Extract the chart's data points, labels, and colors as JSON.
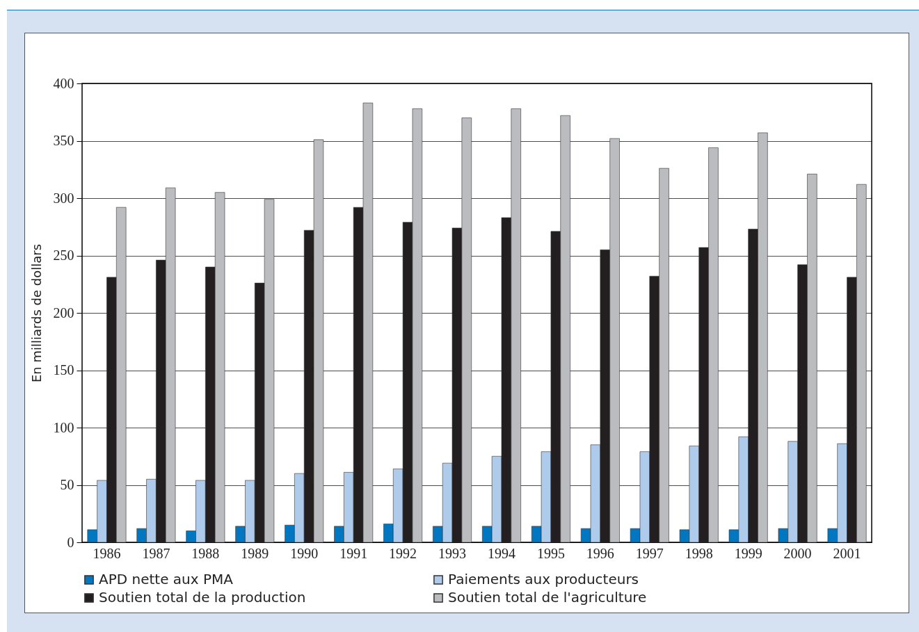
{
  "chart_data": {
    "type": "bar",
    "ylabel": "En milliards de dollars",
    "categories": [
      "1986",
      "1987",
      "1988",
      "1989",
      "1990",
      "1991",
      "1992",
      "1993",
      "1994",
      "1995",
      "1996",
      "1997",
      "1998",
      "1999",
      "2000",
      "2001"
    ],
    "series": [
      {
        "name": "APD nette aux PMA",
        "color": "#0077c0",
        "values": [
          11,
          12,
          10,
          14,
          15,
          14,
          16,
          14,
          14,
          14,
          12,
          12,
          11,
          11,
          12,
          12
        ]
      },
      {
        "name": "Paiements aux producteurs",
        "color": "#aecbeb",
        "values": [
          54,
          55,
          54,
          54,
          60,
          61,
          64,
          69,
          75,
          79,
          85,
          79,
          84,
          92,
          88,
          86
        ]
      },
      {
        "name": "Soutien total de la production",
        "color": "#231f20",
        "values": [
          231,
          246,
          240,
          226,
          272,
          292,
          279,
          274,
          283,
          271,
          255,
          232,
          257,
          273,
          242,
          231
        ]
      },
      {
        "name": "Soutien total de l'agriculture",
        "color": "#bbbcc0",
        "values": [
          292,
          309,
          305,
          299,
          351,
          383,
          378,
          370,
          378,
          372,
          352,
          326,
          344,
          357,
          321,
          312
        ]
      }
    ],
    "ylim": [
      0,
      400
    ],
    "yticks": [
      0,
      50,
      100,
      150,
      200,
      250,
      300,
      350,
      400
    ],
    "grid": "y",
    "legend": "bottom"
  }
}
